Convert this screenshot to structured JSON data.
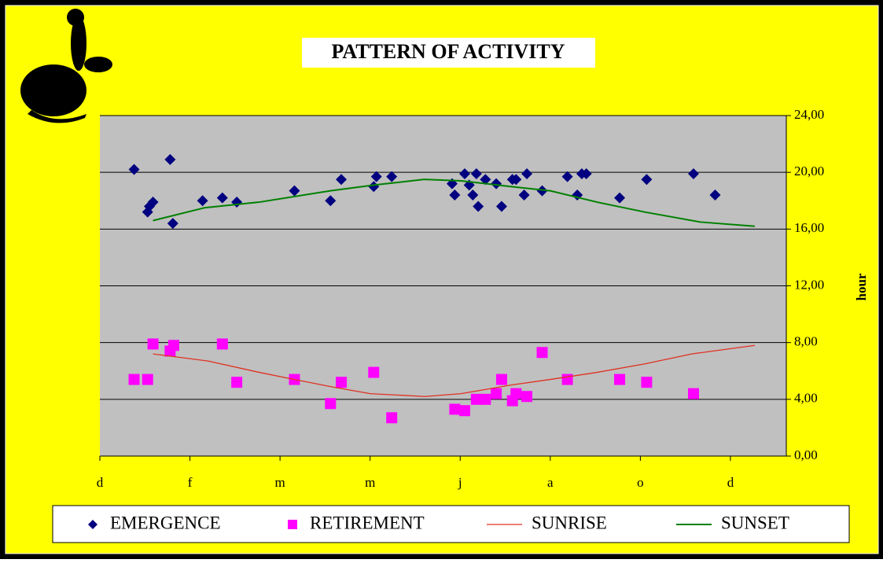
{
  "chart_data": {
    "type": "scatter",
    "title": "PATTERN OF ACTIVITY",
    "y2label": "hour",
    "xlim": [
      0,
      7.62
    ],
    "xticks": [
      {
        "value": 0,
        "label": "d"
      },
      {
        "value": 1,
        "label": "f"
      },
      {
        "value": 2,
        "label": "m"
      },
      {
        "value": 3,
        "label": "m"
      },
      {
        "value": 4,
        "label": "j"
      },
      {
        "value": 5,
        "label": "a"
      },
      {
        "value": 6,
        "label": "o"
      },
      {
        "value": 7,
        "label": "d"
      }
    ],
    "y2lim": [
      0,
      24
    ],
    "y2ticks": [
      {
        "value": 0,
        "label": "0,00"
      },
      {
        "value": 4,
        "label": "4,00"
      },
      {
        "value": 8,
        "label": "8,00"
      },
      {
        "value": 12,
        "label": "12,00"
      },
      {
        "value": 16,
        "label": "16,00"
      },
      {
        "value": 20,
        "label": "20,00"
      },
      {
        "value": 24,
        "label": "24,00"
      }
    ],
    "grid": true,
    "series": [
      {
        "name": "EMERGENCE",
        "color": "#000080",
        "marker": "diamond",
        "axis": "y2",
        "x": [
          0.38,
          0.53,
          0.55,
          0.59,
          0.78,
          0.81,
          1.14,
          1.36,
          1.52,
          2.16,
          2.56,
          2.68,
          3.04,
          3.07,
          3.24,
          3.91,
          3.94,
          4.05,
          4.1,
          4.14,
          4.18,
          4.2,
          4.28,
          4.4,
          4.46,
          4.58,
          4.62,
          4.71,
          4.74,
          4.91,
          5.19,
          5.3,
          5.35,
          5.4,
          5.77,
          6.07,
          6.59,
          6.83
        ],
        "values": [
          20.2,
          17.2,
          17.6,
          17.9,
          20.9,
          16.4,
          18.0,
          18.2,
          17.9,
          18.7,
          18.0,
          19.5,
          19.0,
          19.7,
          19.7,
          19.2,
          18.4,
          19.9,
          19.1,
          18.4,
          19.9,
          17.6,
          19.5,
          19.2,
          17.6,
          19.5,
          19.5,
          18.4,
          19.9,
          18.7,
          19.7,
          18.4,
          19.9,
          19.9,
          18.2,
          19.5,
          19.9,
          18.4
        ]
      },
      {
        "name": "RETIREMENT",
        "color": "#ff00ff",
        "marker": "square",
        "axis": "y2",
        "x": [
          0.38,
          0.53,
          0.59,
          0.78,
          0.82,
          1.36,
          1.52,
          2.16,
          2.56,
          2.68,
          3.04,
          3.24,
          3.94,
          4.05,
          4.18,
          4.28,
          4.4,
          4.46,
          4.58,
          4.62,
          4.74,
          4.91,
          5.19,
          5.77,
          6.07,
          6.59
        ],
        "values": [
          5.4,
          5.4,
          7.9,
          7.4,
          7.8,
          7.9,
          5.2,
          5.4,
          3.7,
          5.2,
          5.9,
          2.7,
          3.3,
          3.2,
          4.0,
          4.0,
          4.4,
          5.4,
          3.9,
          4.4,
          4.2,
          7.3,
          5.4,
          5.4,
          5.2,
          4.4
        ]
      },
      {
        "name": "SUNRISE",
        "color": "#e03020",
        "marker": "line",
        "axis": "y2",
        "x": [
          0.59,
          1.2,
          1.77,
          2.16,
          2.56,
          3.0,
          3.61,
          4.01,
          4.56,
          5.0,
          5.52,
          6.05,
          6.57,
          7.27
        ],
        "values": [
          7.2,
          6.7,
          5.9,
          5.4,
          4.9,
          4.4,
          4.2,
          4.4,
          5.0,
          5.4,
          5.9,
          6.5,
          7.2,
          7.8
        ]
      },
      {
        "name": "SUNSET",
        "color": "#008000",
        "marker": "line",
        "axis": "y2",
        "x": [
          0.59,
          1.16,
          1.77,
          2.56,
          3.04,
          3.6,
          4.01,
          4.56,
          5.0,
          5.52,
          6.05,
          6.66,
          7.27
        ],
        "values": [
          16.6,
          17.5,
          17.9,
          18.7,
          19.1,
          19.5,
          19.4,
          19.0,
          18.7,
          17.9,
          17.2,
          16.5,
          16.2
        ]
      }
    ]
  }
}
